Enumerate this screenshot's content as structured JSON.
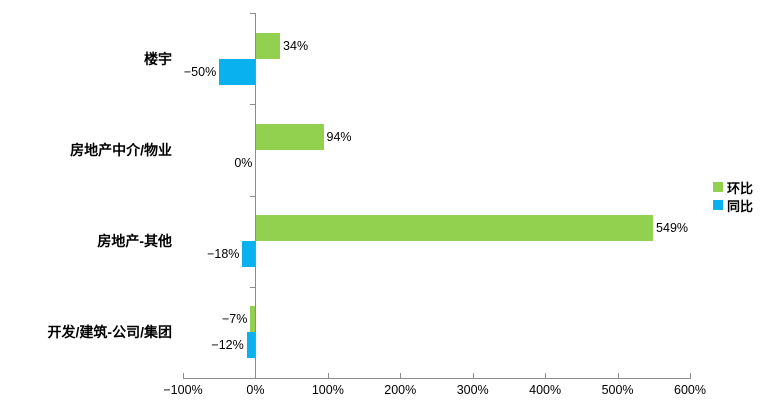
{
  "chart_data": {
    "type": "bar",
    "orientation": "horizontal",
    "title": "",
    "categories": [
      "楼宇",
      "房地产中介/物业",
      "房地产-其他",
      "开发/建筑-公司/集团"
    ],
    "series": [
      {
        "name": "环比",
        "color": "#92d050",
        "values": [
          34,
          94,
          549,
          -7
        ],
        "labels": [
          "34%",
          "94%",
          "549%",
          "−7%"
        ]
      },
      {
        "name": "同比",
        "color": "#0ab1ef",
        "values": [
          -50,
          0,
          -18,
          -12
        ],
        "labels": [
          "−50%",
          "0%",
          "−18%",
          "−12%"
        ]
      }
    ],
    "x_axis": {
      "min": -100,
      "max": 600,
      "tick_step": 100,
      "tick_labels": [
        "−100%",
        "0%",
        "100%",
        "200%",
        "300%",
        "400%",
        "500%",
        "600%"
      ]
    },
    "legend": {
      "position": "right",
      "entries": [
        "环比",
        "同比"
      ]
    },
    "grid": false,
    "axis_color": "#8c8c8c",
    "text_color": "#000000",
    "background": "#ffffff"
  }
}
